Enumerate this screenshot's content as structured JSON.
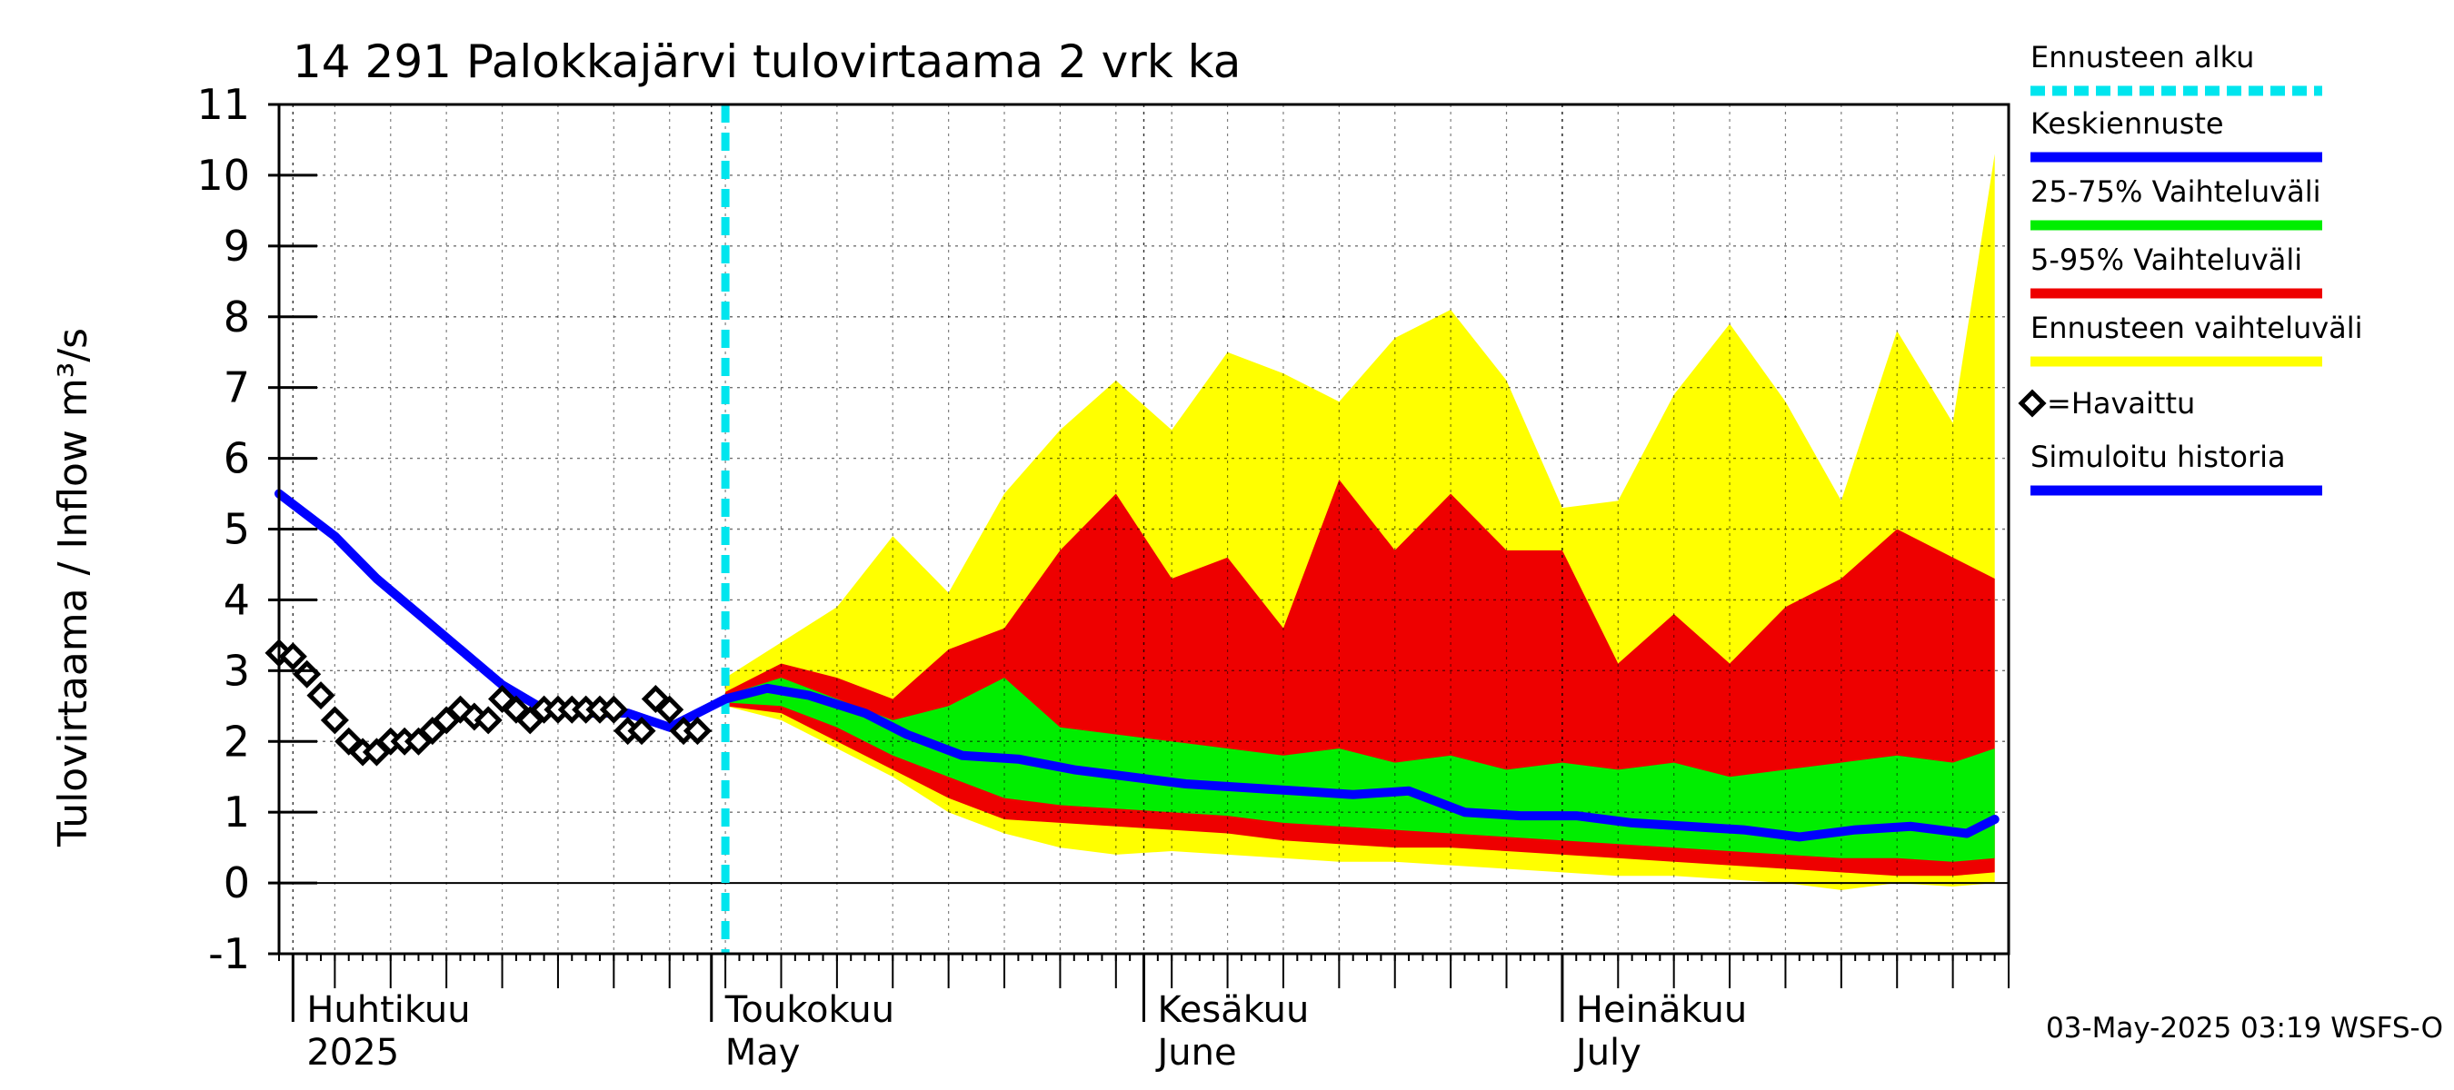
{
  "chart_data": {
    "type": "area",
    "title": "14 291 Palokkajärvi tulovirtaama 2 vrk ka",
    "ylabel": "Tulovirtaama / Inflow    m³/s",
    "ylim": [
      -1,
      11
    ],
    "yticks": [
      -1,
      0,
      1,
      2,
      3,
      4,
      5,
      6,
      7,
      8,
      9,
      10,
      11
    ],
    "x_start": "2025-03-31",
    "x_end": "2025-08-02",
    "forecast_start": "2025-05-02",
    "x_axis_labels": [
      {
        "date": "2025-04-01",
        "line1": "Huhtikuu",
        "line2": "2025"
      },
      {
        "date": "2025-05-01",
        "line1": "Toukokuu",
        "line2": "May"
      },
      {
        "date": "2025-06-01",
        "line1": "Kesäkuu",
        "line2": "June"
      },
      {
        "date": "2025-07-01",
        "line1": "Heinäkuu",
        "line2": "July"
      }
    ],
    "grid": true,
    "legend_position": "right",
    "colors": {
      "forecast_start": "#00e5ee",
      "mean": "#0000ff",
      "range_25_75": "#00ee00",
      "range_5_95": "#ee0000",
      "range_full": "#ffff00",
      "observed": "#000000",
      "simulated": "#0000ff"
    },
    "series": [
      {
        "name": "Ennusteen vaihteluväli",
        "x": [
          "2025-05-02",
          "2025-05-06",
          "2025-05-10",
          "2025-05-14",
          "2025-05-18",
          "2025-05-22",
          "2025-05-26",
          "2025-05-30",
          "2025-06-03",
          "2025-06-07",
          "2025-06-11",
          "2025-06-15",
          "2025-06-19",
          "2025-06-23",
          "2025-06-27",
          "2025-07-01",
          "2025-07-05",
          "2025-07-09",
          "2025-07-13",
          "2025-07-17",
          "2025-07-21",
          "2025-07-25",
          "2025-07-29",
          "2025-08-01"
        ],
        "low": [
          2.5,
          2.3,
          1.9,
          1.5,
          1.0,
          0.7,
          0.5,
          0.4,
          0.45,
          0.4,
          0.35,
          0.3,
          0.3,
          0.25,
          0.2,
          0.15,
          0.1,
          0.1,
          0.05,
          0.0,
          -0.1,
          0.0,
          -0.05,
          0.0
        ],
        "high": [
          2.9,
          3.4,
          3.9,
          4.9,
          4.1,
          5.5,
          6.4,
          7.1,
          6.4,
          7.5,
          7.2,
          6.8,
          7.7,
          8.1,
          7.1,
          5.3,
          5.4,
          6.9,
          7.9,
          6.8,
          5.4,
          7.8,
          6.5,
          10.3
        ]
      },
      {
        "name": "5-95% Vaihteluväli",
        "x": [
          "2025-05-02",
          "2025-05-06",
          "2025-05-10",
          "2025-05-14",
          "2025-05-18",
          "2025-05-22",
          "2025-05-26",
          "2025-05-30",
          "2025-06-03",
          "2025-06-07",
          "2025-06-11",
          "2025-06-15",
          "2025-06-19",
          "2025-06-23",
          "2025-06-27",
          "2025-07-01",
          "2025-07-05",
          "2025-07-09",
          "2025-07-13",
          "2025-07-17",
          "2025-07-21",
          "2025-07-25",
          "2025-07-29",
          "2025-08-01"
        ],
        "low": [
          2.5,
          2.4,
          2.0,
          1.6,
          1.2,
          0.9,
          0.85,
          0.8,
          0.75,
          0.7,
          0.6,
          0.55,
          0.5,
          0.5,
          0.45,
          0.4,
          0.35,
          0.3,
          0.25,
          0.2,
          0.15,
          0.1,
          0.1,
          0.15
        ],
        "high": [
          2.7,
          3.1,
          2.9,
          2.6,
          3.3,
          3.6,
          4.7,
          5.5,
          4.3,
          4.6,
          3.6,
          5.7,
          4.7,
          5.5,
          4.7,
          4.7,
          3.1,
          3.8,
          3.1,
          3.9,
          4.3,
          5.0,
          4.6,
          4.3
        ]
      },
      {
        "name": "25-75% Vaihteluväli",
        "x": [
          "2025-05-02",
          "2025-05-06",
          "2025-05-10",
          "2025-05-14",
          "2025-05-18",
          "2025-05-22",
          "2025-05-26",
          "2025-05-30",
          "2025-06-03",
          "2025-06-07",
          "2025-06-11",
          "2025-06-15",
          "2025-06-19",
          "2025-06-23",
          "2025-06-27",
          "2025-07-01",
          "2025-07-05",
          "2025-07-09",
          "2025-07-13",
          "2025-07-17",
          "2025-07-21",
          "2025-07-25",
          "2025-07-29",
          "2025-08-01"
        ],
        "low": [
          2.55,
          2.5,
          2.2,
          1.8,
          1.5,
          1.2,
          1.1,
          1.05,
          1.0,
          0.95,
          0.85,
          0.8,
          0.75,
          0.7,
          0.65,
          0.6,
          0.55,
          0.5,
          0.45,
          0.4,
          0.35,
          0.35,
          0.3,
          0.35
        ],
        "high": [
          2.65,
          2.9,
          2.6,
          2.3,
          2.5,
          2.9,
          2.2,
          2.1,
          2.0,
          1.9,
          1.8,
          1.9,
          1.7,
          1.8,
          1.6,
          1.7,
          1.6,
          1.7,
          1.5,
          1.6,
          1.7,
          1.8,
          1.7,
          1.9
        ]
      },
      {
        "name": "Keskiennuste",
        "x": [
          "2025-05-02",
          "2025-05-05",
          "2025-05-08",
          "2025-05-12",
          "2025-05-15",
          "2025-05-19",
          "2025-05-23",
          "2025-05-27",
          "2025-05-31",
          "2025-06-04",
          "2025-06-08",
          "2025-06-12",
          "2025-06-16",
          "2025-06-20",
          "2025-06-24",
          "2025-06-28",
          "2025-07-02",
          "2025-07-06",
          "2025-07-10",
          "2025-07-14",
          "2025-07-18",
          "2025-07-22",
          "2025-07-26",
          "2025-07-30",
          "2025-08-01"
        ],
        "y": [
          2.6,
          2.75,
          2.65,
          2.4,
          2.1,
          1.8,
          1.75,
          1.6,
          1.5,
          1.4,
          1.35,
          1.3,
          1.25,
          1.3,
          1.0,
          0.95,
          0.95,
          0.85,
          0.8,
          0.75,
          0.65,
          0.75,
          0.8,
          0.7,
          0.9
        ]
      },
      {
        "name": "Simuloitu historia",
        "x": [
          "2025-03-31",
          "2025-04-02",
          "2025-04-04",
          "2025-04-07",
          "2025-04-10",
          "2025-04-13",
          "2025-04-16",
          "2025-04-19",
          "2025-04-22",
          "2025-04-25",
          "2025-04-28",
          "2025-05-01",
          "2025-05-02"
        ],
        "y": [
          5.5,
          5.2,
          4.9,
          4.3,
          3.8,
          3.3,
          2.8,
          2.45,
          2.4,
          2.4,
          2.2,
          2.5,
          2.6
        ]
      },
      {
        "name": "=Havaittu",
        "x": [
          "2025-03-31",
          "2025-04-01",
          "2025-04-02",
          "2025-04-03",
          "2025-04-04",
          "2025-04-05",
          "2025-04-06",
          "2025-04-07",
          "2025-04-08",
          "2025-04-09",
          "2025-04-10",
          "2025-04-11",
          "2025-04-12",
          "2025-04-13",
          "2025-04-14",
          "2025-04-15",
          "2025-04-16",
          "2025-04-17",
          "2025-04-18",
          "2025-04-19",
          "2025-04-20",
          "2025-04-21",
          "2025-04-22",
          "2025-04-23",
          "2025-04-24",
          "2025-04-25",
          "2025-04-26",
          "2025-04-27",
          "2025-04-28",
          "2025-04-29",
          "2025-04-30"
        ],
        "y": [
          3.25,
          3.2,
          2.95,
          2.65,
          2.3,
          2.0,
          1.85,
          1.85,
          2.0,
          2.0,
          2.0,
          2.15,
          2.3,
          2.45,
          2.35,
          2.3,
          2.6,
          2.45,
          2.3,
          2.45,
          2.45,
          2.45,
          2.45,
          2.45,
          2.45,
          2.15,
          2.15,
          2.6,
          2.45,
          2.15,
          2.15
        ]
      }
    ]
  },
  "legend": {
    "items": [
      {
        "label": "Ennusteen alku",
        "color": "#00e5ee",
        "style": "dashed"
      },
      {
        "label": "Keskiennuste",
        "color": "#0000ff",
        "style": "line"
      },
      {
        "label": "25-75% Vaihteluväli",
        "color": "#00ee00",
        "style": "line"
      },
      {
        "label": "5-95% Vaihteluväli",
        "color": "#ee0000",
        "style": "line"
      },
      {
        "label": "Ennusteen vaihteluväli",
        "color": "#ffff00",
        "style": "line"
      },
      {
        "label": "=Havaittu",
        "color": "#000000",
        "style": "diamond"
      },
      {
        "label": "Simuloitu historia",
        "color": "#0000ff",
        "style": "line"
      }
    ]
  },
  "footer": {
    "timestamp": "03-May-2025 03:19 WSFS-O"
  }
}
